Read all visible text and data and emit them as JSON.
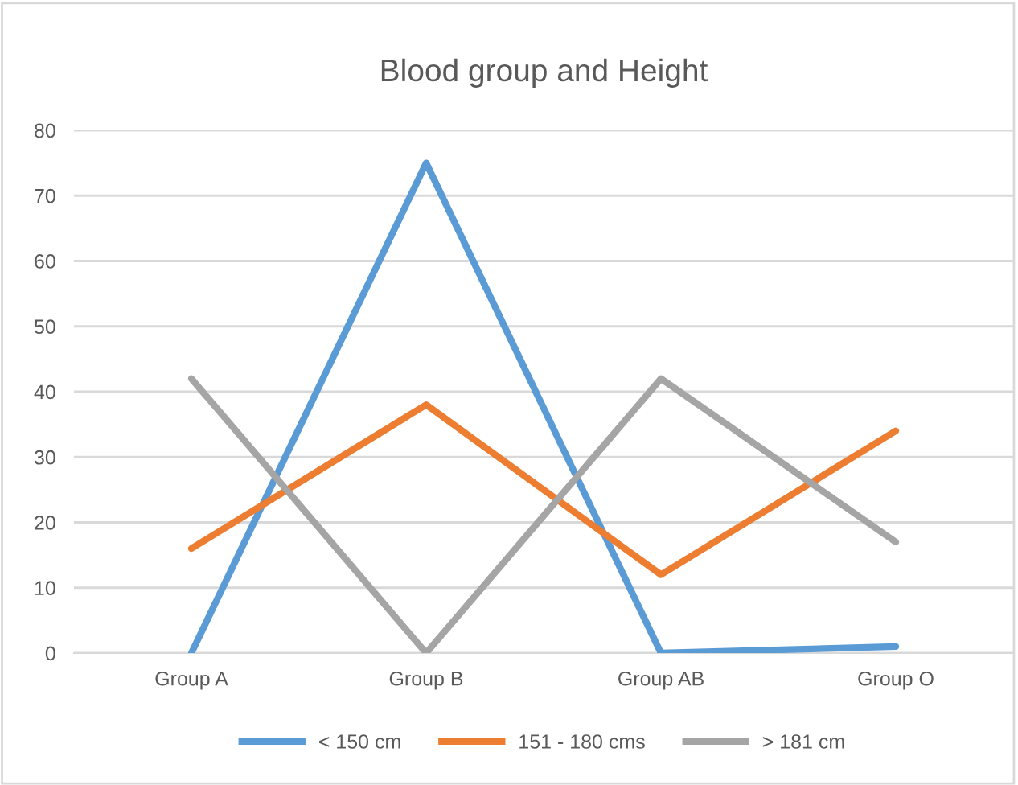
{
  "chart_data": {
    "type": "line",
    "title": "Blood group and Height",
    "categories": [
      "Group A",
      "Group B",
      "Group AB",
      "Group O"
    ],
    "series": [
      {
        "name": "< 150 cm",
        "color": "#5b9bd5",
        "values": [
          0,
          75,
          0,
          1
        ]
      },
      {
        "name": "151 - 180 cms",
        "color": "#ed7d31",
        "values": [
          16,
          38,
          12,
          34
        ]
      },
      {
        "name": "> 181 cm",
        "color": "#a5a5a5",
        "values": [
          42,
          0,
          42,
          17
        ]
      }
    ],
    "ylim": [
      0,
      80
    ],
    "yticks": [
      0,
      10,
      20,
      30,
      40,
      50,
      60,
      70,
      80
    ],
    "grid": "y",
    "legend": "bottom",
    "marker": "none",
    "line_style": "solid"
  }
}
